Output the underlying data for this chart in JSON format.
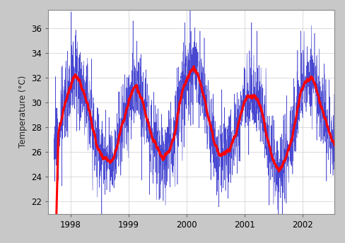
{
  "ylabel": "Temperature (°C)",
  "ylim": [
    21,
    37.5
  ],
  "yticks": [
    22,
    24,
    26,
    28,
    30,
    32,
    34,
    36
  ],
  "xlim_start": 1997.62,
  "xlim_end": 2002.55,
  "xtick_years": [
    1998,
    1999,
    2000,
    2001,
    2002
  ],
  "bg_outer": "#aaaaaa",
  "bg_frame": "#c8c8c8",
  "plot_bg": "#ffffff",
  "line_color": "#3333cc",
  "smooth_color": "#ff0000",
  "smooth_linewidth": 2.2,
  "noise_linewidth": 0.4,
  "seed": 12,
  "n_points": 1826,
  "t_start_year": 1997.72,
  "base_mean": 28.5,
  "annual_amp": 3.3,
  "annual_phase_shift": 0.12,
  "noise_std": 1.8,
  "smooth_window": 55,
  "grid_color": "#cccccc"
}
